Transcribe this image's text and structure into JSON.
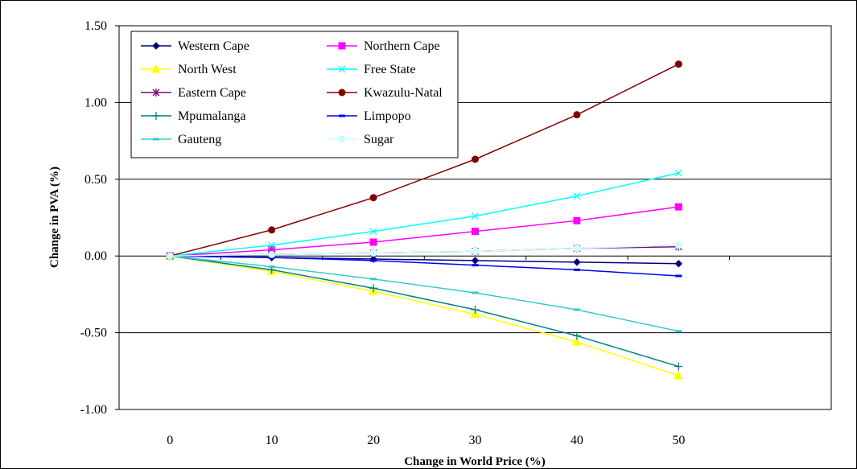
{
  "chart_data": {
    "type": "line",
    "title": "",
    "xlabel": "Change in World Price (%)",
    "ylabel": "Change in PVA (%)",
    "categories": [
      "0",
      "10",
      "20",
      "30",
      "40",
      "50"
    ],
    "ylim": [
      -1.0,
      1.5
    ],
    "yticks": [
      "1.50",
      "1.00",
      "0.50",
      "0.00",
      "-0.50",
      "-1.00"
    ],
    "ytick_values": [
      1.5,
      1.0,
      0.5,
      0.0,
      -0.5,
      -1.0
    ],
    "grid": "horizontal",
    "legend_position": "top-left",
    "series": [
      {
        "name": "Western Cape",
        "color": "#000080",
        "marker": "diamond",
        "values": [
          0,
          -0.01,
          -0.02,
          -0.03,
          -0.04,
          -0.05
        ]
      },
      {
        "name": "Northern Cape",
        "color": "#FF00FF",
        "marker": "square",
        "values": [
          0,
          0.04,
          0.09,
          0.16,
          0.23,
          0.32
        ]
      },
      {
        "name": "North West",
        "color": "#FFFF00",
        "marker": "triangle",
        "values": [
          0,
          -0.1,
          -0.23,
          -0.38,
          -0.56,
          -0.78
        ]
      },
      {
        "name": "Free State",
        "color": "#00FFFF",
        "marker": "x",
        "values": [
          0,
          0.07,
          0.16,
          0.26,
          0.39,
          0.54
        ]
      },
      {
        "name": "Eastern Cape",
        "color": "#800080",
        "marker": "star",
        "values": [
          0,
          0.01,
          0.02,
          0.03,
          0.05,
          0.06
        ]
      },
      {
        "name": "Kwazulu-Natal",
        "color": "#800000",
        "marker": "circle",
        "values": [
          0,
          0.17,
          0.38,
          0.63,
          0.92,
          1.25
        ]
      },
      {
        "name": "Mpumalanga",
        "color": "#008080",
        "marker": "plus",
        "values": [
          0,
          -0.09,
          -0.21,
          -0.35,
          -0.52,
          -0.72
        ]
      },
      {
        "name": "Limpopo",
        "color": "#0000FF",
        "marker": "dash",
        "values": [
          0,
          -0.01,
          -0.03,
          -0.06,
          -0.09,
          -0.13
        ]
      },
      {
        "name": "Gauteng",
        "color": "#33CCCC",
        "marker": "dash",
        "values": [
          0,
          -0.07,
          -0.15,
          -0.24,
          -0.35,
          -0.49
        ]
      },
      {
        "name": "Sugar",
        "color": "#CCFFFF",
        "marker": "circle",
        "values": [
          0,
          0.01,
          0.02,
          0.03,
          0.05,
          0.07
        ]
      }
    ]
  }
}
